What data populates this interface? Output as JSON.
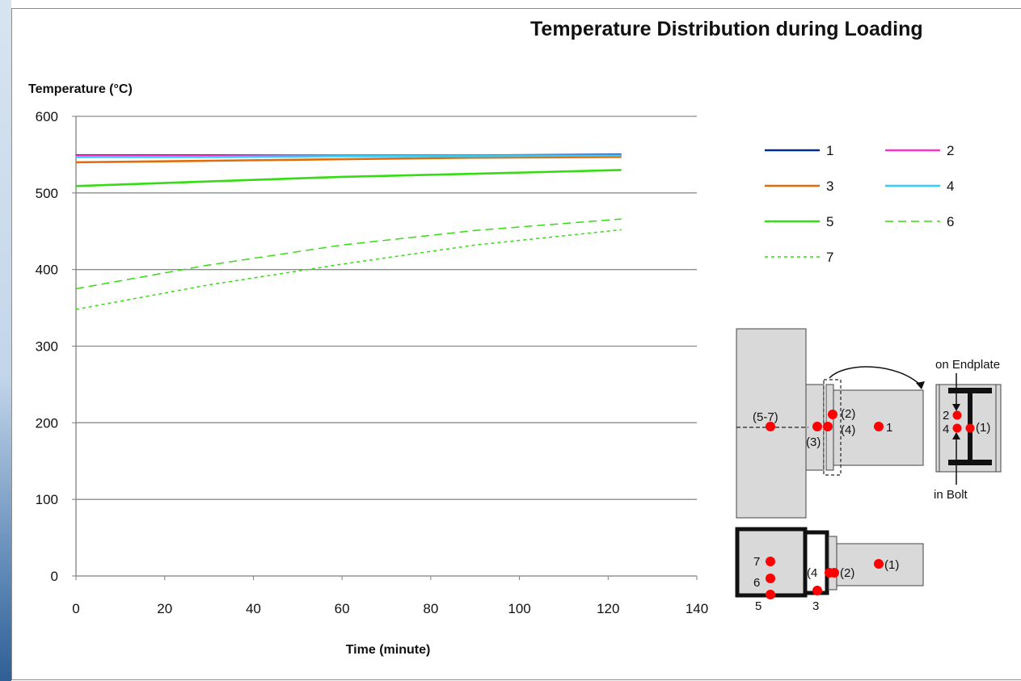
{
  "chart_data": {
    "type": "line",
    "title": "Temperature Distribution during Loading",
    "ylabel": "Temperature (°C)",
    "xlabel": "Time (minute)",
    "xlim": [
      0,
      140
    ],
    "ylim": [
      0,
      600
    ],
    "x_ticks": [
      "0",
      "20",
      "40",
      "60",
      "80",
      "100",
      "120",
      "140"
    ],
    "y_ticks": [
      "0",
      "100",
      "200",
      "300",
      "400",
      "500",
      "600"
    ],
    "grid": "horizontal",
    "legend_position": "right",
    "series": [
      {
        "name": "1",
        "color": "#002b8f",
        "dash": "solid",
        "points": [
          [
            0,
            549
          ],
          [
            30,
            549
          ],
          [
            60,
            549
          ],
          [
            90,
            549
          ],
          [
            123,
            550
          ]
        ]
      },
      {
        "name": "2",
        "color": "#ff33cc",
        "dash": "solid",
        "points": [
          [
            0,
            548
          ],
          [
            30,
            548
          ],
          [
            60,
            549
          ],
          [
            90,
            549
          ],
          [
            123,
            549
          ]
        ]
      },
      {
        "name": "3",
        "color": "#e36c09",
        "dash": "solid",
        "points": [
          [
            0,
            540
          ],
          [
            30,
            542
          ],
          [
            60,
            544
          ],
          [
            90,
            546
          ],
          [
            123,
            547
          ]
        ]
      },
      {
        "name": "4",
        "color": "#33ccff",
        "dash": "solid",
        "points": [
          [
            0,
            547
          ],
          [
            30,
            547
          ],
          [
            60,
            548
          ],
          [
            90,
            548
          ],
          [
            123,
            549
          ]
        ]
      },
      {
        "name": "5",
        "color": "#33dd11",
        "dash": "solid",
        "points": [
          [
            0,
            509
          ],
          [
            30,
            515
          ],
          [
            60,
            521
          ],
          [
            90,
            525
          ],
          [
            123,
            530
          ]
        ]
      },
      {
        "name": "6",
        "color": "#33dd11",
        "dash": "long",
        "points": [
          [
            0,
            375
          ],
          [
            30,
            406
          ],
          [
            60,
            432
          ],
          [
            90,
            451
          ],
          [
            123,
            466
          ]
        ]
      },
      {
        "name": "7",
        "color": "#33dd11",
        "dash": "short",
        "points": [
          [
            0,
            348
          ],
          [
            30,
            380
          ],
          [
            60,
            407
          ],
          [
            90,
            432
          ],
          [
            123,
            452
          ]
        ]
      }
    ],
    "diagram": {
      "side_view_labels": [
        "(5-7)",
        "(3)",
        "(2)",
        "(4)",
        "1"
      ],
      "section_labels": [
        "on Endplate",
        "2",
        "4",
        "(1)",
        "in Bolt"
      ],
      "plan_view_labels": [
        "7",
        "6",
        "5",
        "(4",
        "(2)",
        "(1)",
        "3"
      ],
      "marker_color": "#ff0000"
    }
  }
}
